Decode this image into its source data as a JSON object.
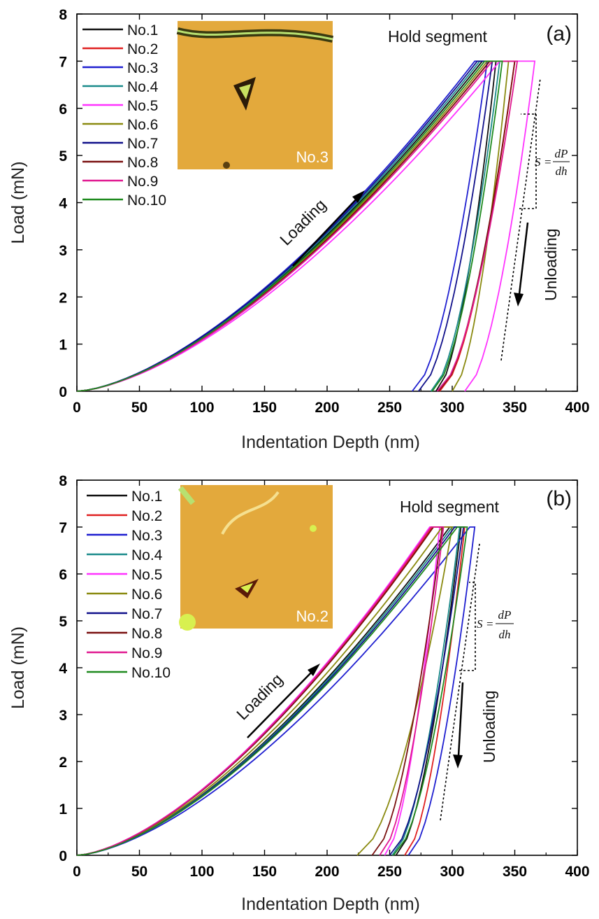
{
  "chart_data": [
    {
      "type": "line",
      "panel_label": "(a)",
      "xlabel": "Indentation Depth (nm)",
      "ylabel": "Load (mN)",
      "xlim": [
        0,
        400
      ],
      "ylim": [
        0,
        8
      ],
      "xticks": [
        "0",
        "50",
        "100",
        "150",
        "200",
        "250",
        "300",
        "350",
        "400"
      ],
      "yticks": [
        "0",
        "1",
        "2",
        "3",
        "4",
        "5",
        "6",
        "7",
        "8"
      ],
      "grid": false,
      "legend_position": "top-left",
      "annotations": {
        "hold": "Hold segment",
        "loading": "Loading",
        "unloading": "Unloading",
        "stiffness_lhs": "S =",
        "stiffness_num": "dP",
        "stiffness_den": "dh",
        "inset_label": "No.3"
      },
      "series": [
        {
          "name": "No.1",
          "color": "#111111",
          "max_depth": 324,
          "hold_end": 335,
          "final_depth": 287
        },
        {
          "name": "No.2",
          "color": "#e02020",
          "max_depth": 330,
          "hold_end": 350,
          "final_depth": 290
        },
        {
          "name": "No.3",
          "color": "#1f1fd0",
          "max_depth": 318,
          "hold_end": 328,
          "final_depth": 268
        },
        {
          "name": "No.4",
          "color": "#1a8a8a",
          "max_depth": 322,
          "hold_end": 338,
          "final_depth": 283
        },
        {
          "name": "No.5",
          "color": "#ff33ff",
          "max_depth": 338,
          "hold_end": 366,
          "final_depth": 310
        },
        {
          "name": "No.6",
          "color": "#8a8a10",
          "max_depth": 328,
          "hold_end": 345,
          "final_depth": 300
        },
        {
          "name": "No.7",
          "color": "#10108a",
          "max_depth": 320,
          "hold_end": 332,
          "final_depth": 273
        },
        {
          "name": "No.8",
          "color": "#7a1010",
          "max_depth": 330,
          "hold_end": 350,
          "final_depth": 289
        },
        {
          "name": "No.9",
          "color": "#e01890",
          "max_depth": 332,
          "hold_end": 352,
          "final_depth": 288
        },
        {
          "name": "No.10",
          "color": "#1e8a1e",
          "max_depth": 326,
          "hold_end": 340,
          "final_depth": 284
        }
      ]
    },
    {
      "type": "line",
      "panel_label": "(b)",
      "xlabel": "Indentation Depth (nm)",
      "ylabel": "Load (mN)",
      "xlim": [
        0,
        400
      ],
      "ylim": [
        0,
        8
      ],
      "xticks": [
        "0",
        "50",
        "100",
        "150",
        "200",
        "250",
        "300",
        "350",
        "400"
      ],
      "yticks": [
        "0",
        "1",
        "2",
        "3",
        "4",
        "5",
        "6",
        "7",
        "8"
      ],
      "grid": false,
      "legend_position": "top-left",
      "annotations": {
        "hold": "Hold segment",
        "loading": "Loading",
        "unloading": "Unloading",
        "stiffness_lhs": "S =",
        "stiffness_num": "dP",
        "stiffness_den": "dh",
        "inset_label": "No.2"
      },
      "series": [
        {
          "name": "No.1",
          "color": "#111111",
          "max_depth": 298,
          "hold_end": 307,
          "final_depth": 255
        },
        {
          "name": "No.2",
          "color": "#e02020",
          "max_depth": 284,
          "hold_end": 310,
          "final_depth": 262
        },
        {
          "name": "No.3",
          "color": "#1f1fd0",
          "max_depth": 314,
          "hold_end": 318,
          "final_depth": 265
        },
        {
          "name": "No.4",
          "color": "#1a8a8a",
          "max_depth": 300,
          "hold_end": 306,
          "final_depth": 252
        },
        {
          "name": "No.5",
          "color": "#ff33ff",
          "max_depth": 282,
          "hold_end": 290,
          "final_depth": 246
        },
        {
          "name": "No.6",
          "color": "#8a8a10",
          "max_depth": 292,
          "hold_end": 300,
          "final_depth": 224
        },
        {
          "name": "No.7",
          "color": "#10108a",
          "max_depth": 302,
          "hold_end": 309,
          "final_depth": 250
        },
        {
          "name": "No.8",
          "color": "#7a1010",
          "max_depth": 285,
          "hold_end": 292,
          "final_depth": 236
        },
        {
          "name": "No.9",
          "color": "#e01890",
          "max_depth": 283,
          "hold_end": 293,
          "final_depth": 242
        },
        {
          "name": "No.10",
          "color": "#1e8a1e",
          "max_depth": 304,
          "hold_end": 312,
          "final_depth": 253
        }
      ]
    }
  ]
}
